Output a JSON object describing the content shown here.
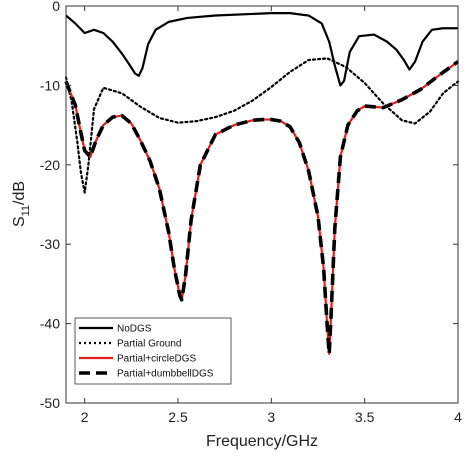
{
  "chart_data": {
    "type": "line",
    "title": "",
    "xlabel": "Frequency/GHz",
    "ylabel_main": "S",
    "ylabel_sub": "11",
    "ylabel_suffix": "/dB",
    "xlim": [
      1.9,
      4.0
    ],
    "ylim": [
      -50,
      0
    ],
    "xticks": [
      2,
      2.5,
      3,
      3.5,
      4
    ],
    "xtick_labels": [
      "2",
      "2.5",
      "3",
      "3.5",
      "4"
    ],
    "yticks": [
      0,
      -10,
      -20,
      -30,
      -40,
      -50
    ],
    "ytick_labels": [
      "0",
      "-10",
      "-20",
      "-30",
      "-40",
      "-50"
    ],
    "grid": false,
    "legend_position": "bottom-left",
    "series": [
      {
        "name": "NoDGS",
        "color": "#000000",
        "style": "solid",
        "x": [
          1.9,
          1.95,
          2.0,
          2.05,
          2.1,
          2.15,
          2.2,
          2.24,
          2.27,
          2.29,
          2.31,
          2.34,
          2.38,
          2.45,
          2.55,
          2.7,
          2.9,
          3.0,
          3.1,
          3.2,
          3.27,
          3.31,
          3.34,
          3.37,
          3.39,
          3.42,
          3.47,
          3.55,
          3.62,
          3.67,
          3.71,
          3.74,
          3.77,
          3.81,
          3.86,
          3.92,
          4.0
        ],
        "y": [
          -1.2,
          -2.2,
          -3.4,
          -3.0,
          -3.4,
          -4.5,
          -6.0,
          -7.4,
          -8.5,
          -8.8,
          -7.8,
          -4.8,
          -3.0,
          -2.0,
          -1.5,
          -1.2,
          -1.0,
          -0.9,
          -0.9,
          -1.2,
          -2.2,
          -4.5,
          -7.5,
          -10.0,
          -9.4,
          -5.8,
          -3.8,
          -3.6,
          -4.5,
          -5.5,
          -6.8,
          -8.0,
          -7.0,
          -4.5,
          -3.0,
          -2.8,
          -2.8
        ]
      },
      {
        "name": "Partial Ground",
        "color": "#000000",
        "style": "dotted",
        "x": [
          1.9,
          1.93,
          1.96,
          1.98,
          2.0,
          2.02,
          2.05,
          2.1,
          2.2,
          2.3,
          2.4,
          2.5,
          2.6,
          2.7,
          2.8,
          2.9,
          3.0,
          3.1,
          3.2,
          3.3,
          3.4,
          3.5,
          3.6,
          3.7,
          3.77,
          3.85,
          3.92,
          4.0
        ],
        "y": [
          -9.0,
          -12.0,
          -17.0,
          -21.0,
          -23.5,
          -20.0,
          -13.0,
          -10.3,
          -11.0,
          -12.7,
          -14.1,
          -14.7,
          -14.5,
          -14.0,
          -13.2,
          -11.9,
          -10.2,
          -8.3,
          -6.8,
          -6.6,
          -7.7,
          -9.7,
          -12.3,
          -14.4,
          -14.8,
          -13.3,
          -11.0,
          -9.5
        ]
      },
      {
        "name": "Partial+circleDGS",
        "color": "#e02020",
        "style": "solid",
        "x": [
          1.9,
          1.95,
          1.98,
          2.0,
          2.03,
          2.06,
          2.1,
          2.15,
          2.2,
          2.25,
          2.3,
          2.35,
          2.4,
          2.45,
          2.48,
          2.51,
          2.52,
          2.54,
          2.57,
          2.62,
          2.7,
          2.8,
          2.9,
          2.95,
          3.0,
          3.05,
          3.1,
          3.15,
          3.2,
          3.25,
          3.28,
          3.3,
          3.31,
          3.32,
          3.34,
          3.37,
          3.41,
          3.46,
          3.5,
          3.55,
          3.6,
          3.7,
          3.8,
          3.9,
          4.0
        ],
        "y": [
          -9.5,
          -12.5,
          -16.0,
          -18.2,
          -19.0,
          -17.0,
          -15.0,
          -14.0,
          -13.8,
          -14.8,
          -17.0,
          -19.5,
          -23.0,
          -28.5,
          -33.0,
          -36.5,
          -37.0,
          -34.0,
          -27.0,
          -20.0,
          -16.2,
          -15.0,
          -14.4,
          -14.3,
          -14.3,
          -14.5,
          -15.2,
          -17.2,
          -20.8,
          -26.5,
          -33.0,
          -40.5,
          -43.8,
          -39.0,
          -28.0,
          -19.0,
          -15.0,
          -13.2,
          -12.6,
          -12.7,
          -12.8,
          -11.8,
          -10.5,
          -8.7,
          -7.0
        ]
      },
      {
        "name": "Partial+dumbbellDGS",
        "color": "#000000",
        "style": "dashed",
        "x": [
          1.9,
          1.95,
          1.98,
          2.0,
          2.03,
          2.06,
          2.1,
          2.15,
          2.2,
          2.25,
          2.3,
          2.35,
          2.4,
          2.45,
          2.48,
          2.51,
          2.52,
          2.54,
          2.57,
          2.62,
          2.7,
          2.8,
          2.9,
          2.95,
          3.0,
          3.05,
          3.1,
          3.15,
          3.2,
          3.25,
          3.28,
          3.3,
          3.31,
          3.32,
          3.34,
          3.37,
          3.41,
          3.46,
          3.5,
          3.55,
          3.6,
          3.7,
          3.8,
          3.9,
          4.0
        ],
        "y": [
          -9.5,
          -12.5,
          -16.0,
          -18.2,
          -19.0,
          -17.0,
          -15.0,
          -14.0,
          -13.8,
          -14.8,
          -17.0,
          -19.5,
          -23.0,
          -28.5,
          -33.0,
          -36.5,
          -37.0,
          -34.0,
          -27.0,
          -20.0,
          -16.2,
          -15.0,
          -14.4,
          -14.3,
          -14.3,
          -14.5,
          -15.2,
          -17.2,
          -20.8,
          -26.5,
          -33.0,
          -40.5,
          -43.8,
          -39.0,
          -28.0,
          -19.0,
          -15.0,
          -13.2,
          -12.6,
          -12.7,
          -12.8,
          -11.8,
          -10.5,
          -8.7,
          -7.0
        ]
      }
    ]
  }
}
